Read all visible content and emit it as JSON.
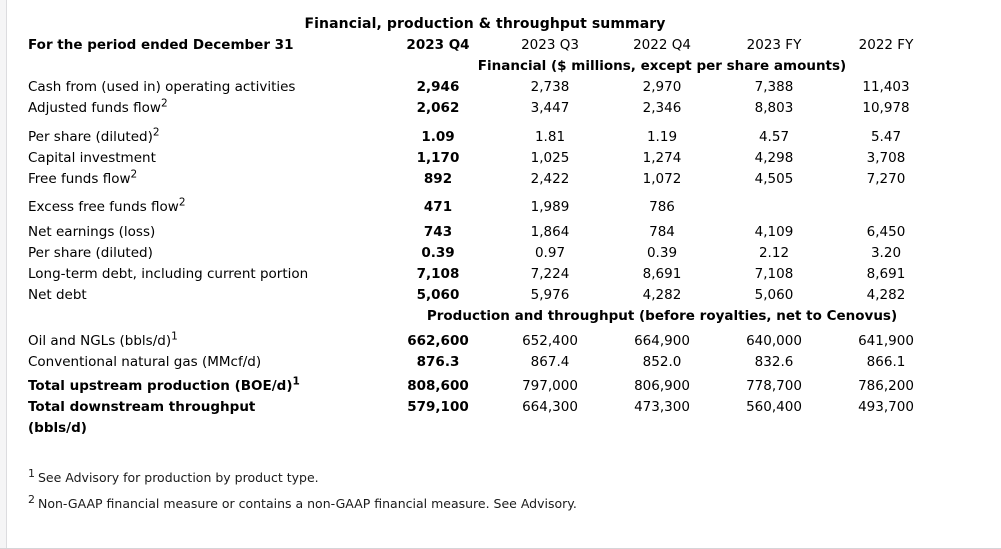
{
  "page": {
    "title": "Financial, production & throughput summary"
  },
  "table": {
    "header": {
      "label": "For the period ended December 31",
      "columns": [
        "2023 Q4",
        "2023 Q3",
        "2022 Q4",
        "2023 FY",
        "2022 FY"
      ]
    },
    "sections": [
      {
        "header": "Financial ($ millions, except per share amounts)",
        "rows": [
          {
            "label": "Cash from (used in) operating activities",
            "sup": "",
            "bold": false,
            "values": [
              "2,946",
              "2,738",
              "2,970",
              "7,388",
              "11,403"
            ]
          },
          {
            "label": "Adjusted funds flow",
            "sup": "2",
            "bold": false,
            "values": [
              "2,062",
              "3,447",
              "2,346",
              "8,803",
              "10,978"
            ]
          },
          {
            "label": "Per share (diluted)",
            "sup": "2",
            "bold": false,
            "values": [
              "1.09",
              "1.81",
              "1.19",
              "4.57",
              "5.47"
            ]
          },
          {
            "label": "Capital investment",
            "sup": "",
            "bold": false,
            "values": [
              "1,170",
              "1,025",
              "1,274",
              "4,298",
              "3,708"
            ]
          },
          {
            "label": "Free funds flow",
            "sup": "2",
            "bold": false,
            "values": [
              "892",
              "2,422",
              "1,072",
              "4,505",
              "7,270"
            ]
          },
          {
            "label": "Excess free funds flow",
            "sup": "2",
            "bold": false,
            "values": [
              "471",
              "1,989",
              "786",
              "",
              ""
            ]
          },
          {
            "label": "Net earnings (loss)",
            "sup": "",
            "bold": false,
            "values": [
              "743",
              "1,864",
              "784",
              "4,109",
              "6,450"
            ]
          },
          {
            "label": "Per share (diluted)",
            "sup": "",
            "bold": false,
            "values": [
              "0.39",
              "0.97",
              "0.39",
              "2.12",
              "3.20"
            ]
          },
          {
            "label": "Long-term debt, including current portion",
            "sup": "",
            "bold": false,
            "values": [
              "7,108",
              "7,224",
              "8,691",
              "7,108",
              "8,691"
            ]
          },
          {
            "label": "Net debt",
            "sup": "",
            "bold": false,
            "values": [
              "5,060",
              "5,976",
              "4,282",
              "5,060",
              "4,282"
            ]
          }
        ]
      },
      {
        "header": "Production and throughput (before royalties, net to Cenovus)",
        "rows": [
          {
            "label": "Oil and NGLs (bbls/d)",
            "sup": "1",
            "bold": false,
            "values": [
              "662,600",
              "652,400",
              "664,900",
              "640,000",
              "641,900"
            ]
          },
          {
            "label": "Conventional natural gas (MMcf/d)",
            "sup": "",
            "bold": false,
            "values": [
              "876.3",
              "867.4",
              "852.0",
              "832.6",
              "866.1"
            ]
          },
          {
            "label": "Total upstream production (BOE/d)",
            "sup": "1",
            "bold": true,
            "values": [
              "808,600",
              "797,000",
              "806,900",
              "778,700",
              "786,200"
            ]
          },
          {
            "label": "Total downstream throughput",
            "sup": "",
            "label2": "(bbls/d)",
            "bold": true,
            "values": [
              "579,100",
              "664,300",
              "473,300",
              "560,400",
              "493,700"
            ]
          }
        ]
      }
    ]
  },
  "footnotes": [
    {
      "marker": "1",
      "text": "See Advisory for production by product type."
    },
    {
      "marker": "2",
      "text": "Non-GAAP financial measure or contains a non-GAAP financial measure. See Advisory."
    }
  ]
}
